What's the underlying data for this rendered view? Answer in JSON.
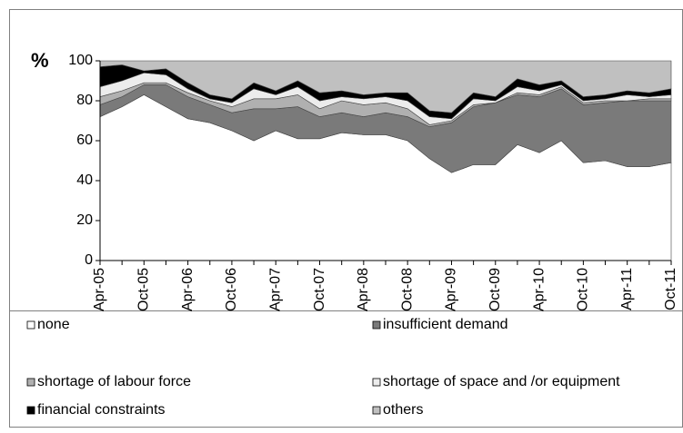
{
  "chart_data": {
    "type": "stacked_area",
    "y_label": "%",
    "categories": [
      "Apr-05",
      null,
      "Oct-05",
      null,
      "Apr-06",
      null,
      "Oct-06",
      null,
      "Apr-07",
      null,
      "Oct-07",
      null,
      "Apr-08",
      null,
      "Oct-08",
      null,
      "Apr-09",
      null,
      "Oct-09",
      null,
      "Apr-10",
      null,
      "Oct-10",
      null,
      "Apr-11",
      null,
      "Oct-11"
    ],
    "ylim": [
      0,
      100
    ],
    "yticks": [
      0,
      20,
      40,
      60,
      80,
      100
    ],
    "series": [
      {
        "name": "none",
        "color": "#ffffff",
        "values": [
          72,
          77,
          83,
          77,
          71,
          69,
          65,
          60,
          65,
          61,
          61,
          64,
          63,
          63,
          60,
          51,
          44,
          48,
          48,
          58,
          54,
          60,
          49,
          50,
          47,
          47,
          49
        ]
      },
      {
        "name": "insufficient demand",
        "color": "#7a7a7a",
        "values": [
          6,
          5,
          5,
          11,
          11,
          9,
          9,
          16,
          11,
          16,
          11,
          10,
          9,
          11,
          12,
          16,
          25,
          29,
          31,
          25,
          28,
          26,
          29,
          29,
          33,
          33,
          31
        ]
      },
      {
        "name": "shortage of labour force",
        "color": "#b0b0b0",
        "values": [
          4,
          3,
          1,
          1,
          2,
          2,
          3,
          5,
          5,
          6,
          4,
          6,
          6,
          5,
          4,
          1,
          1,
          1,
          0,
          1,
          1,
          1,
          1,
          1,
          0,
          1,
          1
        ]
      },
      {
        "name": "shortage of space and /or equipment",
        "color": "#ececec",
        "values": [
          5,
          5,
          5,
          4,
          2,
          1,
          2,
          5,
          2,
          4,
          4,
          2,
          3,
          3,
          4,
          4,
          1,
          3,
          1,
          3,
          2,
          1,
          1,
          1,
          3,
          1,
          2
        ]
      },
      {
        "name": "financial constraints",
        "color": "#000000",
        "values": [
          10,
          8,
          1,
          3,
          3,
          2,
          2,
          3,
          2,
          3,
          4,
          3,
          2,
          2,
          4,
          3,
          3,
          3,
          2,
          4,
          3,
          2,
          2,
          2,
          2,
          2,
          3
        ]
      },
      {
        "name": "others",
        "color": "#c0c0c0",
        "values": [
          3,
          2,
          5,
          4,
          11,
          17,
          19,
          11,
          15,
          10,
          16,
          15,
          17,
          16,
          16,
          25,
          26,
          16,
          18,
          9,
          12,
          10,
          18,
          17,
          15,
          16,
          14
        ]
      }
    ]
  }
}
